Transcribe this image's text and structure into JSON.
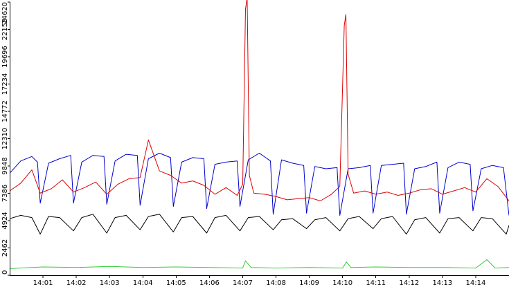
{
  "chart_data": {
    "type": "line",
    "title": "",
    "xlabel": "",
    "ylabel": "",
    "ylim": [
      0,
      24620
    ],
    "xlim": [
      "14:00:00",
      "14:15:00"
    ],
    "grid": false,
    "legend": "none",
    "yticks": [
      "0",
      "2462",
      "4924",
      "7386",
      "9848",
      "12310",
      "14772",
      "17234",
      "19696",
      "22158",
      "24620"
    ],
    "xticks": [
      {
        "t": "14:01:00",
        "label": "14:01"
      },
      {
        "t": "14:02:00",
        "label": "14:02"
      },
      {
        "t": "14:03:00",
        "label": "14:03"
      },
      {
        "t": "14:04:00",
        "label": "14:04"
      },
      {
        "t": "14:05:00",
        "label": "14:05"
      },
      {
        "t": "14:06:00",
        "label": "14:06"
      },
      {
        "t": "14:07:00",
        "label": "14:07"
      },
      {
        "t": "14:08:00",
        "label": "14:08"
      },
      {
        "t": "14:09:00",
        "label": "14:09"
      },
      {
        "t": "14:10:00",
        "label": "14:10"
      },
      {
        "t": "14:11:00",
        "label": "14:11"
      },
      {
        "t": "14:12:00",
        "label": "14:12"
      },
      {
        "t": "14:13:00",
        "label": "14:13"
      },
      {
        "t": "14:14:00",
        "label": "14:14"
      }
    ],
    "series": [
      {
        "color": "#0000cc",
        "x": [
          "14:00:00",
          "14:00:20",
          "14:00:40",
          "14:00:50",
          "14:00:55",
          "14:01:10",
          "14:01:30",
          "14:01:50",
          "14:01:55",
          "14:02:10",
          "14:02:30",
          "14:02:50",
          "14:02:55",
          "14:03:10",
          "14:03:30",
          "14:03:50",
          "14:03:55",
          "14:04:10",
          "14:04:30",
          "14:04:50",
          "14:04:55",
          "14:05:10",
          "14:05:30",
          "14:05:50",
          "14:05:55",
          "14:06:10",
          "14:06:30",
          "14:06:50",
          "14:06:55",
          "14:07:10",
          "14:07:30",
          "14:07:50",
          "14:07:55",
          "14:08:10",
          "14:08:30",
          "14:08:50",
          "14:08:55",
          "14:09:10",
          "14:09:30",
          "14:09:50",
          "14:09:55",
          "14:10:10",
          "14:10:30",
          "14:10:50",
          "14:10:55",
          "14:11:10",
          "14:11:30",
          "14:11:50",
          "14:11:55",
          "14:12:10",
          "14:12:30",
          "14:12:50",
          "14:12:55",
          "14:13:10",
          "14:13:30",
          "14:13:50",
          "14:13:55",
          "14:14:10",
          "14:14:30",
          "14:14:50",
          "14:15:00"
        ],
        "values": [
          9200,
          10300,
          10700,
          10200,
          6500,
          10100,
          10500,
          10800,
          6500,
          10200,
          10800,
          10700,
          6400,
          10300,
          10900,
          10800,
          6300,
          10500,
          11000,
          10600,
          6200,
          10200,
          10600,
          10500,
          6000,
          10000,
          10200,
          10300,
          6200,
          10400,
          11000,
          10300,
          5500,
          10400,
          10100,
          9900,
          5600,
          9800,
          9600,
          9700,
          5400,
          9600,
          9700,
          9900,
          5600,
          9900,
          10000,
          10100,
          5500,
          9600,
          9800,
          10200,
          5600,
          9700,
          10200,
          10000,
          5800,
          9600,
          9900,
          9700,
          5400
        ]
      },
      {
        "color": "#dd0000",
        "x": [
          "14:00:00",
          "14:00:20",
          "14:00:40",
          "14:00:55",
          "14:01:15",
          "14:01:35",
          "14:01:55",
          "14:02:15",
          "14:02:35",
          "14:02:55",
          "14:03:15",
          "14:03:35",
          "14:03:55",
          "14:04:10",
          "14:04:30",
          "14:04:50",
          "14:05:10",
          "14:05:30",
          "14:05:50",
          "14:06:10",
          "14:06:30",
          "14:06:50",
          "14:07:00",
          "14:07:05",
          "14:07:08",
          "14:07:12",
          "14:07:20",
          "14:07:40",
          "14:08:00",
          "14:08:20",
          "14:08:40",
          "14:09:00",
          "14:09:20",
          "14:09:40",
          "14:09:55",
          "14:10:03",
          "14:10:06",
          "14:10:10",
          "14:10:20",
          "14:10:40",
          "14:11:00",
          "14:11:20",
          "14:11:40",
          "14:12:00",
          "14:12:20",
          "14:12:40",
          "14:13:00",
          "14:13:20",
          "14:13:40",
          "14:14:00",
          "14:14:20",
          "14:14:40",
          "14:15:00"
        ],
        "values": [
          7600,
          8300,
          9500,
          7400,
          7800,
          8600,
          7500,
          7900,
          8400,
          7300,
          8200,
          8700,
          8800,
          12200,
          9400,
          9000,
          8300,
          8500,
          8100,
          7300,
          7900,
          7200,
          8200,
          24000,
          25000,
          9000,
          7400,
          7300,
          7100,
          6800,
          6900,
          7000,
          6700,
          7300,
          8000,
          22500,
          23500,
          9100,
          7400,
          7600,
          7300,
          7500,
          7200,
          7400,
          7700,
          7800,
          7300,
          7600,
          7900,
          7500,
          8700,
          8000,
          6700
        ]
      },
      {
        "color": "#000000",
        "x": [
          "14:00:00",
          "14:00:20",
          "14:00:40",
          "14:00:55",
          "14:01:10",
          "14:01:30",
          "14:01:55",
          "14:02:10",
          "14:02:30",
          "14:02:55",
          "14:03:10",
          "14:03:30",
          "14:03:55",
          "14:04:10",
          "14:04:30",
          "14:04:55",
          "14:05:10",
          "14:05:30",
          "14:05:55",
          "14:06:10",
          "14:06:30",
          "14:06:55",
          "14:07:10",
          "14:07:30",
          "14:07:55",
          "14:08:10",
          "14:08:30",
          "14:08:55",
          "14:09:10",
          "14:09:30",
          "14:09:55",
          "14:10:10",
          "14:10:30",
          "14:10:55",
          "14:11:10",
          "14:11:30",
          "14:11:55",
          "14:12:10",
          "14:12:30",
          "14:12:55",
          "14:13:10",
          "14:13:30",
          "14:13:55",
          "14:14:10",
          "14:14:30",
          "14:14:55",
          "14:15:00"
        ],
        "values": [
          5100,
          5400,
          5200,
          3700,
          5300,
          5200,
          4000,
          5200,
          5500,
          3800,
          5200,
          5400,
          4100,
          5300,
          5500,
          3900,
          5200,
          5300,
          3800,
          5200,
          5400,
          4000,
          5200,
          5300,
          4100,
          5000,
          5100,
          4200,
          5000,
          5200,
          4000,
          5100,
          5300,
          4200,
          5100,
          5300,
          3700,
          5000,
          5200,
          3800,
          5100,
          5200,
          4000,
          5200,
          5100,
          3700,
          4500
        ]
      },
      {
        "color": "#33cc33",
        "x": [
          "14:00:00",
          "14:01:00",
          "14:02:00",
          "14:03:00",
          "14:04:00",
          "14:05:00",
          "14:06:00",
          "14:07:00",
          "14:07:05",
          "14:07:15",
          "14:08:00",
          "14:09:00",
          "14:10:00",
          "14:10:07",
          "14:10:15",
          "14:11:00",
          "14:12:00",
          "14:13:00",
          "14:14:00",
          "14:14:20",
          "14:14:35",
          "14:15:00"
        ],
        "values": [
          600,
          750,
          700,
          800,
          700,
          750,
          700,
          650,
          1300,
          700,
          650,
          700,
          650,
          1200,
          700,
          750,
          700,
          700,
          650,
          1400,
          650,
          700
        ]
      }
    ]
  }
}
